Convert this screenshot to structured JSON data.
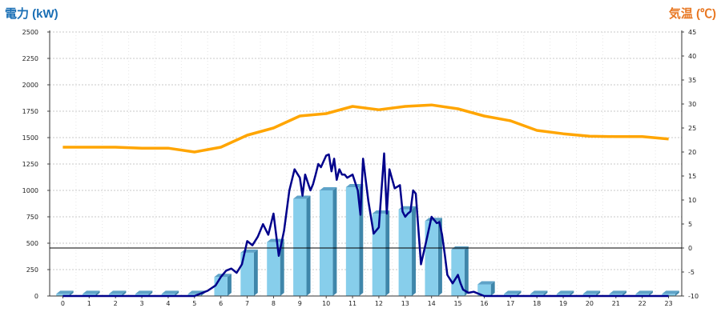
{
  "chart_data": {
    "type": "bar",
    "left_axis_title": "電力 (kW)",
    "right_axis_title": "気温 (℃)",
    "x_ticks": [
      "0",
      "1",
      "2",
      "3",
      "4",
      "5",
      "6",
      "7",
      "8",
      "9",
      "10",
      "11",
      "12",
      "13",
      "14",
      "15",
      "16",
      "17",
      "18",
      "19",
      "20",
      "21",
      "22",
      "23"
    ],
    "y_left": {
      "min": 0,
      "max": 2500,
      "ticks": [
        "0",
        "250",
        "500",
        "750",
        "1000",
        "1250",
        "1500",
        "1750",
        "2000",
        "2250",
        "2500"
      ]
    },
    "y_right": {
      "min": -10,
      "max": 45,
      "ticks": [
        "-10",
        "-5",
        "0",
        "5",
        "10",
        "15",
        "20",
        "25",
        "30",
        "35",
        "40",
        "45"
      ]
    },
    "grid": true,
    "bars": {
      "x": [
        0,
        1,
        2,
        3,
        4,
        5,
        6,
        7,
        8,
        9,
        10,
        11,
        12,
        13,
        14,
        15,
        16,
        17,
        18,
        19,
        20,
        21,
        22,
        23
      ],
      "values": [
        20,
        20,
        20,
        20,
        20,
        20,
        180,
        410,
        510,
        920,
        1000,
        1030,
        780,
        820,
        710,
        440,
        110,
        20,
        20,
        20,
        20,
        20,
        20,
        20
      ],
      "color": "#87ceeb"
    },
    "power_line": {
      "color": "#00008b",
      "x": [
        0,
        1,
        2,
        3,
        4,
        5,
        5.5,
        5.8,
        6.0,
        6.2,
        6.4,
        6.6,
        6.8,
        7.0,
        7.2,
        7.4,
        7.6,
        7.8,
        8.0,
        8.2,
        8.4,
        8.6,
        8.8,
        9.0,
        9.1,
        9.2,
        9.4,
        9.5,
        9.6,
        9.7,
        9.8,
        10.0,
        10.1,
        10.2,
        10.3,
        10.4,
        10.5,
        10.6,
        10.7,
        10.8,
        11.0,
        11.2,
        11.3,
        11.4,
        11.6,
        11.8,
        12.0,
        12.2,
        12.3,
        12.4,
        12.6,
        12.8,
        12.9,
        13.0,
        13.1,
        13.2,
        13.3,
        13.4,
        13.6,
        13.8,
        14.0,
        14.1,
        14.2,
        14.3,
        14.4,
        14.5,
        14.6,
        14.8,
        15.0,
        15.1,
        15.2,
        15.4,
        15.6,
        15.8,
        16.0,
        16.2,
        16.4,
        16.6,
        16.8,
        17,
        17.5,
        18,
        19,
        20,
        21,
        22,
        23
      ],
      "values": [
        0,
        0,
        0,
        0,
        0,
        0,
        50,
        100,
        180,
        240,
        260,
        220,
        300,
        520,
        480,
        560,
        680,
        580,
        780,
        380,
        620,
        1000,
        1200,
        1120,
        950,
        1150,
        1000,
        1060,
        1150,
        1250,
        1220,
        1330,
        1340,
        1180,
        1300,
        1100,
        1200,
        1150,
        1150,
        1120,
        1150,
        1000,
        770,
        1300,
        900,
        590,
        650,
        1350,
        780,
        1200,
        1020,
        1050,
        800,
        750,
        780,
        800,
        1000,
        970,
        300,
        520,
        750,
        720,
        690,
        700,
        580,
        400,
        200,
        120,
        200,
        120,
        60,
        30,
        40,
        20,
        0,
        0,
        0,
        0,
        0,
        0,
        0,
        0,
        0,
        0,
        0,
        0,
        0
      ]
    },
    "temperature_line": {
      "color": "#ffa500",
      "x": [
        0,
        1,
        2,
        3,
        4,
        5,
        6,
        7,
        8,
        9,
        10,
        11,
        12,
        13,
        14,
        15,
        16,
        17,
        18,
        19,
        20,
        21,
        22,
        23
      ],
      "values": [
        21,
        21,
        21,
        20.8,
        20.8,
        20,
        21,
        23.5,
        25,
        27.5,
        28,
        29.5,
        28.8,
        29.5,
        29.8,
        29,
        27.5,
        26.5,
        24.5,
        23.8,
        23.3,
        23.2,
        23.2,
        22.7
      ]
    }
  }
}
